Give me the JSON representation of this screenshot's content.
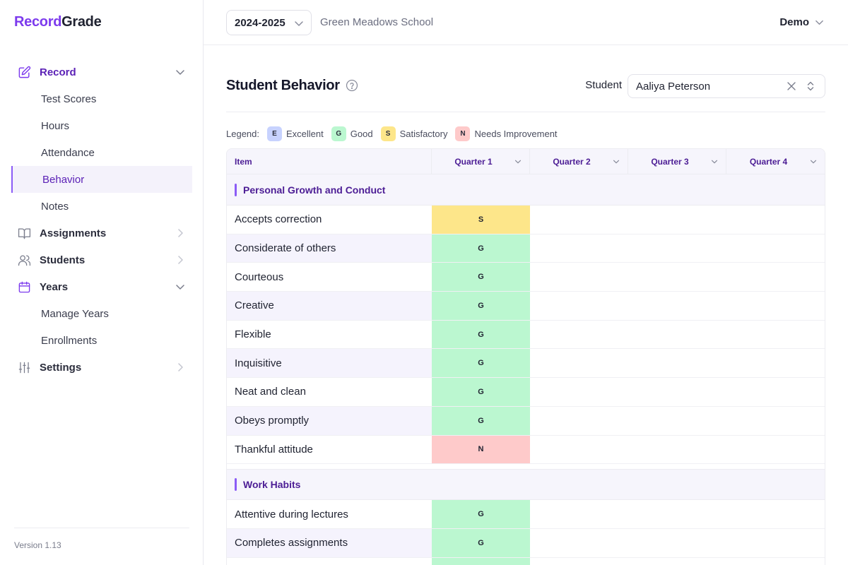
{
  "brand": {
    "part1": "Record",
    "part2": "Grade"
  },
  "sidebar": {
    "items": [
      {
        "label": "Record",
        "icon": "edit-icon",
        "open": true,
        "subitems": [
          "Test Scores",
          "Hours",
          "Attendance",
          "Behavior",
          "Notes"
        ]
      },
      {
        "label": "Assignments",
        "icon": "book-icon",
        "open": false,
        "subitems": []
      },
      {
        "label": "Students",
        "icon": "users-icon",
        "open": false,
        "subitems": []
      },
      {
        "label": "Years",
        "icon": "calendar-icon",
        "open": true,
        "subitems": [
          "Manage Years",
          "Enrollments"
        ]
      },
      {
        "label": "Settings",
        "icon": "sliders-icon",
        "open": false,
        "subitems": []
      }
    ],
    "active_subitem": "Behavior",
    "version": "Version 1.13"
  },
  "topbar": {
    "year": "2024-2025",
    "school": "Green Meadows School",
    "user": "Demo"
  },
  "page": {
    "title": "Student Behavior",
    "student_label": "Student",
    "student_value": "Aaliya Peterson"
  },
  "legend": {
    "title": "Legend:",
    "items": [
      {
        "code": "E",
        "label": "Excellent",
        "color": "#c7d2fe"
      },
      {
        "code": "G",
        "label": "Good",
        "color": "#bbf7d0"
      },
      {
        "code": "S",
        "label": "Satisfactory",
        "color": "#fde68a"
      },
      {
        "code": "N",
        "label": "Needs Improvement",
        "color": "#fecaca"
      }
    ]
  },
  "table": {
    "headers": {
      "item": "Item",
      "quarters": [
        "Quarter 1",
        "Quarter 2",
        "Quarter 3",
        "Quarter 4"
      ]
    },
    "groups": [
      {
        "name": "Personal Growth and Conduct",
        "rows": [
          {
            "item": "Accepts correction",
            "q": [
              "S",
              "",
              "",
              ""
            ]
          },
          {
            "item": "Considerate of others",
            "q": [
              "G",
              "",
              "",
              ""
            ]
          },
          {
            "item": "Courteous",
            "q": [
              "G",
              "",
              "",
              ""
            ]
          },
          {
            "item": "Creative",
            "q": [
              "G",
              "",
              "",
              ""
            ]
          },
          {
            "item": "Flexible",
            "q": [
              "G",
              "",
              "",
              ""
            ]
          },
          {
            "item": "Inquisitive",
            "q": [
              "G",
              "",
              "",
              ""
            ]
          },
          {
            "item": "Neat and clean",
            "q": [
              "G",
              "",
              "",
              ""
            ]
          },
          {
            "item": "Obeys promptly",
            "q": [
              "G",
              "",
              "",
              ""
            ]
          },
          {
            "item": "Thankful attitude",
            "q": [
              "N",
              "",
              "",
              ""
            ]
          }
        ]
      },
      {
        "name": "Work Habits",
        "rows": [
          {
            "item": "Attentive during lectures",
            "q": [
              "G",
              "",
              "",
              ""
            ]
          },
          {
            "item": "Completes assignments",
            "q": [
              "G",
              "",
              "",
              ""
            ]
          },
          {
            "item": "",
            "q": [
              "G",
              "",
              "",
              ""
            ]
          }
        ]
      }
    ]
  }
}
